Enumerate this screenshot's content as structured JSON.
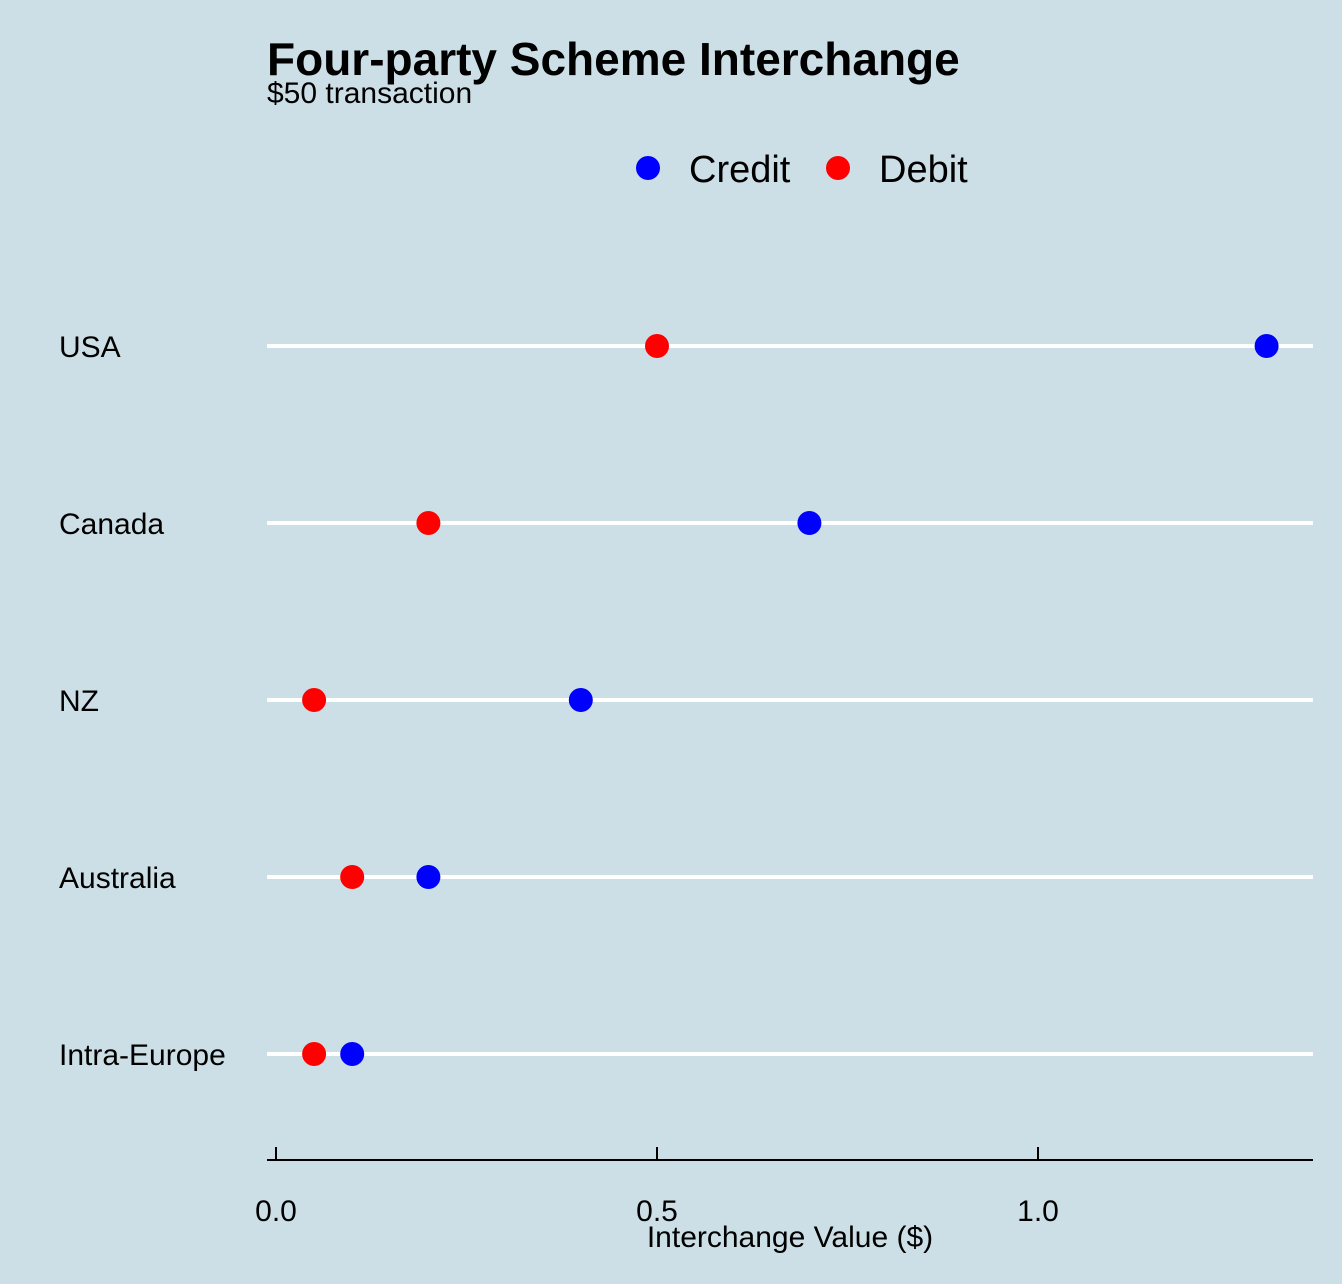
{
  "chart_data": {
    "type": "dot",
    "title": "Four-party Scheme Interchange",
    "subtitle": "$50 transaction",
    "xlabel": "Interchange Value ($)",
    "ylabel": "",
    "xlim": [
      -0.01,
      1.36
    ],
    "x_ticks": [
      0.0,
      0.5,
      1.0
    ],
    "x_tick_labels": [
      "0.0",
      "0.5",
      "1.0"
    ],
    "categories": [
      "USA",
      "Canada",
      "NZ",
      "Australia",
      "Intra-Europe"
    ],
    "series": [
      {
        "name": "Credit",
        "color": "#0000ff",
        "values": [
          1.3,
          0.7,
          0.4,
          0.2,
          0.1
        ]
      },
      {
        "name": "Debit",
        "color": "#ff0000",
        "values": [
          0.5,
          0.2,
          0.05,
          0.1,
          0.05
        ]
      }
    ],
    "legend_position": "top",
    "grid": "horizontal lines per category",
    "colors": {
      "background": "#cddfe6",
      "gridline": "#ffffff",
      "axis": "#000000"
    }
  }
}
